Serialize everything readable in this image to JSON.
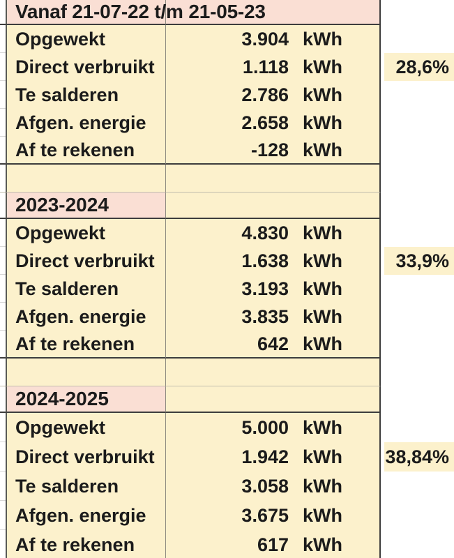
{
  "table": {
    "unit_label": "kWh",
    "colors": {
      "cell_fill": "#FCF1CC",
      "header_fill": "#FADFD4",
      "border_dark": "#3D3D3D",
      "gridline": "#8F8B80",
      "text": "#1B1B1B"
    },
    "rows": [
      {
        "type": "section_header",
        "label": "Vanaf 21-07-22 t/m 21-05-23"
      },
      {
        "type": "data",
        "label": "Opgewekt",
        "value": "3.904"
      },
      {
        "type": "data",
        "label": "Direct verbruikt",
        "value": "1.118",
        "percent": "28,6%"
      },
      {
        "type": "data",
        "label": "Te salderen",
        "value": "2.786"
      },
      {
        "type": "data",
        "label": "Afgen. energie",
        "value": "2.658"
      },
      {
        "type": "data",
        "label": "Af te rekenen",
        "value": "-128"
      },
      {
        "type": "spacer"
      },
      {
        "type": "year_header",
        "label": "2023-2024"
      },
      {
        "type": "data",
        "label": "Opgewekt",
        "value": "4.830"
      },
      {
        "type": "data",
        "label": "Direct verbruikt",
        "value": "1.638",
        "percent": "33,9%"
      },
      {
        "type": "data",
        "label": "Te salderen",
        "value": "3.193"
      },
      {
        "type": "data",
        "label": "Afgen. energie",
        "value": "3.835"
      },
      {
        "type": "data",
        "label": "Af te rekenen",
        "value": "642"
      },
      {
        "type": "spacer"
      },
      {
        "type": "year_header",
        "label": "2024-2025"
      },
      {
        "type": "data",
        "label": "Opgewekt",
        "value": "5.000"
      },
      {
        "type": "data",
        "label": "Direct verbruikt",
        "value": "1.942",
        "percent": "38,84%"
      },
      {
        "type": "data",
        "label": "Te salderen",
        "value": "3.058"
      },
      {
        "type": "data",
        "label": "Afgen. energie",
        "value": "3.675"
      },
      {
        "type": "data",
        "label": "Af te rekenen",
        "value": "617"
      }
    ]
  }
}
